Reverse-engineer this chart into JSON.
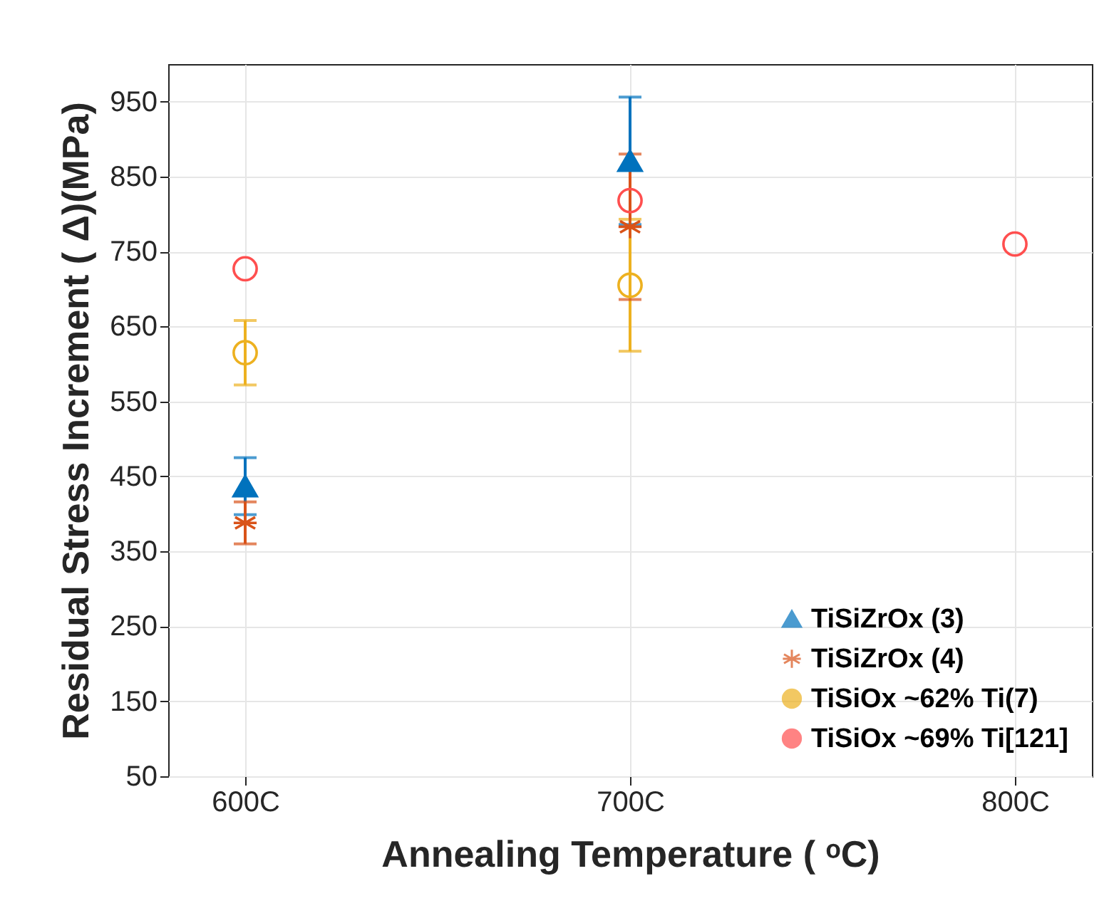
{
  "chart_data": {
    "type": "scatter",
    "xlabel": "Annealing Temperature ( ᵒC)",
    "ylabel": "Residual Stress Increment ( Δ)(MPa)",
    "x": [
      600,
      700,
      800
    ],
    "xlim": [
      580,
      820
    ],
    "xticks": [
      {
        "value": 600,
        "label": "600C"
      },
      {
        "value": 700,
        "label": "700C"
      },
      {
        "value": 800,
        "label": "800C"
      }
    ],
    "ylim": [
      50,
      1000
    ],
    "yticks": [
      50,
      150,
      250,
      350,
      450,
      550,
      650,
      750,
      850,
      950
    ],
    "grid": true,
    "legend": "bottom right",
    "series": [
      {
        "name": "TiSiZrOx (3)",
        "color": "#0072bd",
        "marker": "triangle",
        "values": [
          437,
          871,
          null
        ],
        "errors": [
          38,
          85,
          null
        ]
      },
      {
        "name": "TiSiZrOx (4)",
        "color": "#d95319",
        "marker": "cross",
        "values": [
          388,
          783,
          null
        ],
        "errors": [
          28,
          97,
          null
        ]
      },
      {
        "name": "TiSiOx ~62% Ti(7)",
        "color": "#edb120",
        "marker": "circle",
        "values": [
          615,
          705,
          null
        ],
        "errors": [
          43,
          88,
          null
        ]
      },
      {
        "name": "TiSiOx ~69% Ti[121]",
        "color": "#ff4f4f",
        "marker": "circle",
        "values": [
          727,
          818,
          760
        ]
      }
    ]
  }
}
